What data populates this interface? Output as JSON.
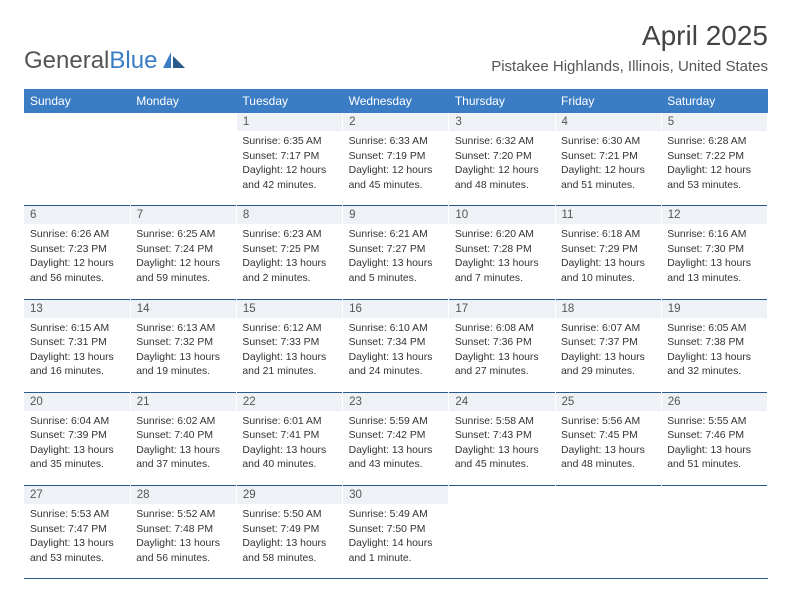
{
  "logo": {
    "general": "General",
    "blue": "Blue"
  },
  "header": {
    "month_title": "April 2025",
    "location": "Pistakee Highlands, Illinois, United States"
  },
  "colors": {
    "accent": "#3b7dc4",
    "daynum_bg": "#eef1f5",
    "row_border": "#2a5a8a"
  },
  "weekdays": [
    "Sunday",
    "Monday",
    "Tuesday",
    "Wednesday",
    "Thursday",
    "Friday",
    "Saturday"
  ],
  "weeks": [
    [
      null,
      null,
      {
        "num": "1",
        "sunrise": "6:35 AM",
        "sunset": "7:17 PM",
        "daylight": "12 hours and 42 minutes."
      },
      {
        "num": "2",
        "sunrise": "6:33 AM",
        "sunset": "7:19 PM",
        "daylight": "12 hours and 45 minutes."
      },
      {
        "num": "3",
        "sunrise": "6:32 AM",
        "sunset": "7:20 PM",
        "daylight": "12 hours and 48 minutes."
      },
      {
        "num": "4",
        "sunrise": "6:30 AM",
        "sunset": "7:21 PM",
        "daylight": "12 hours and 51 minutes."
      },
      {
        "num": "5",
        "sunrise": "6:28 AM",
        "sunset": "7:22 PM",
        "daylight": "12 hours and 53 minutes."
      }
    ],
    [
      {
        "num": "6",
        "sunrise": "6:26 AM",
        "sunset": "7:23 PM",
        "daylight": "12 hours and 56 minutes."
      },
      {
        "num": "7",
        "sunrise": "6:25 AM",
        "sunset": "7:24 PM",
        "daylight": "12 hours and 59 minutes."
      },
      {
        "num": "8",
        "sunrise": "6:23 AM",
        "sunset": "7:25 PM",
        "daylight": "13 hours and 2 minutes."
      },
      {
        "num": "9",
        "sunrise": "6:21 AM",
        "sunset": "7:27 PM",
        "daylight": "13 hours and 5 minutes."
      },
      {
        "num": "10",
        "sunrise": "6:20 AM",
        "sunset": "7:28 PM",
        "daylight": "13 hours and 7 minutes."
      },
      {
        "num": "11",
        "sunrise": "6:18 AM",
        "sunset": "7:29 PM",
        "daylight": "13 hours and 10 minutes."
      },
      {
        "num": "12",
        "sunrise": "6:16 AM",
        "sunset": "7:30 PM",
        "daylight": "13 hours and 13 minutes."
      }
    ],
    [
      {
        "num": "13",
        "sunrise": "6:15 AM",
        "sunset": "7:31 PM",
        "daylight": "13 hours and 16 minutes."
      },
      {
        "num": "14",
        "sunrise": "6:13 AM",
        "sunset": "7:32 PM",
        "daylight": "13 hours and 19 minutes."
      },
      {
        "num": "15",
        "sunrise": "6:12 AM",
        "sunset": "7:33 PM",
        "daylight": "13 hours and 21 minutes."
      },
      {
        "num": "16",
        "sunrise": "6:10 AM",
        "sunset": "7:34 PM",
        "daylight": "13 hours and 24 minutes."
      },
      {
        "num": "17",
        "sunrise": "6:08 AM",
        "sunset": "7:36 PM",
        "daylight": "13 hours and 27 minutes."
      },
      {
        "num": "18",
        "sunrise": "6:07 AM",
        "sunset": "7:37 PM",
        "daylight": "13 hours and 29 minutes."
      },
      {
        "num": "19",
        "sunrise": "6:05 AM",
        "sunset": "7:38 PM",
        "daylight": "13 hours and 32 minutes."
      }
    ],
    [
      {
        "num": "20",
        "sunrise": "6:04 AM",
        "sunset": "7:39 PM",
        "daylight": "13 hours and 35 minutes."
      },
      {
        "num": "21",
        "sunrise": "6:02 AM",
        "sunset": "7:40 PM",
        "daylight": "13 hours and 37 minutes."
      },
      {
        "num": "22",
        "sunrise": "6:01 AM",
        "sunset": "7:41 PM",
        "daylight": "13 hours and 40 minutes."
      },
      {
        "num": "23",
        "sunrise": "5:59 AM",
        "sunset": "7:42 PM",
        "daylight": "13 hours and 43 minutes."
      },
      {
        "num": "24",
        "sunrise": "5:58 AM",
        "sunset": "7:43 PM",
        "daylight": "13 hours and 45 minutes."
      },
      {
        "num": "25",
        "sunrise": "5:56 AM",
        "sunset": "7:45 PM",
        "daylight": "13 hours and 48 minutes."
      },
      {
        "num": "26",
        "sunrise": "5:55 AM",
        "sunset": "7:46 PM",
        "daylight": "13 hours and 51 minutes."
      }
    ],
    [
      {
        "num": "27",
        "sunrise": "5:53 AM",
        "sunset": "7:47 PM",
        "daylight": "13 hours and 53 minutes."
      },
      {
        "num": "28",
        "sunrise": "5:52 AM",
        "sunset": "7:48 PM",
        "daylight": "13 hours and 56 minutes."
      },
      {
        "num": "29",
        "sunrise": "5:50 AM",
        "sunset": "7:49 PM",
        "daylight": "13 hours and 58 minutes."
      },
      {
        "num": "30",
        "sunrise": "5:49 AM",
        "sunset": "7:50 PM",
        "daylight": "14 hours and 1 minute."
      },
      null,
      null,
      null
    ]
  ],
  "labels": {
    "sunrise_prefix": "Sunrise: ",
    "sunset_prefix": "Sunset: ",
    "daylight_prefix": "Daylight: "
  }
}
